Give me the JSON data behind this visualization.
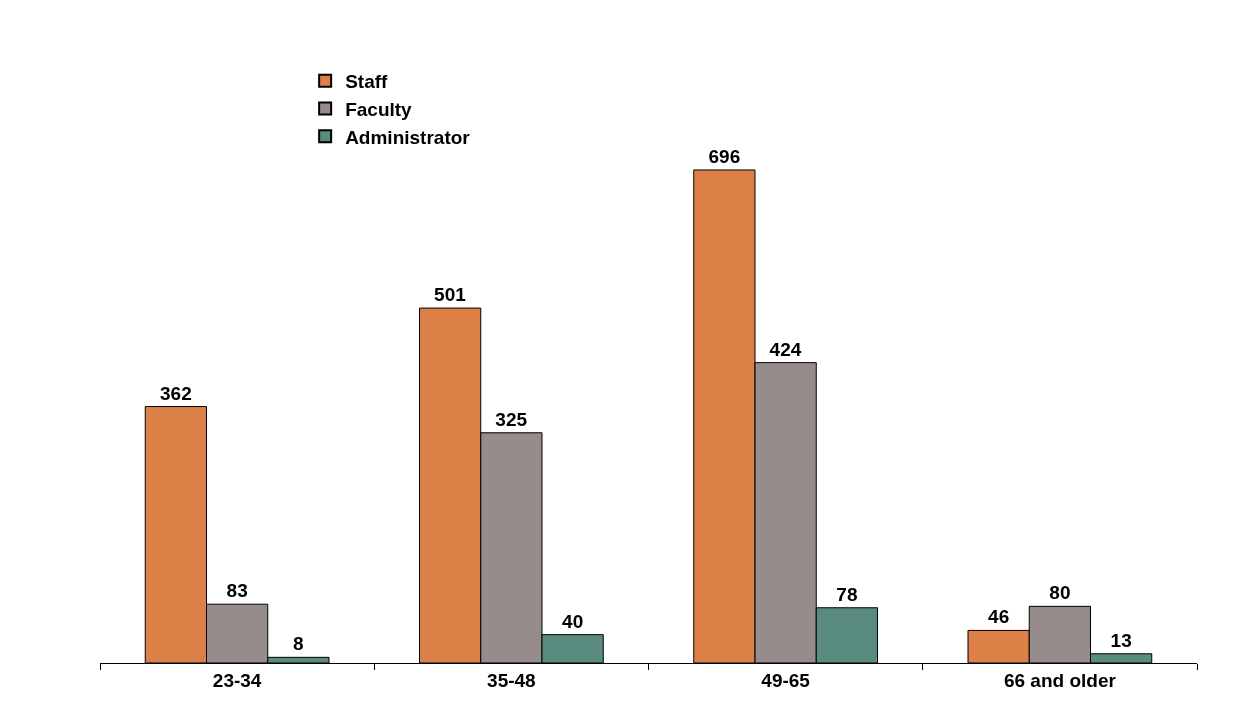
{
  "chart_data": {
    "type": "bar",
    "categories": [
      "23-34",
      "35-48",
      "49-65",
      "66 and older"
    ],
    "series": [
      {
        "name": "Staff",
        "color": "#dd8047",
        "values": [
          362,
          501,
          696,
          46
        ]
      },
      {
        "name": "Faculty",
        "color": "#968c8c",
        "values": [
          83,
          325,
          424,
          80
        ]
      },
      {
        "name": "Administrator",
        "color": "#598b7f",
        "values": [
          8,
          40,
          78,
          13
        ]
      }
    ],
    "data_labels": true,
    "legend": "top left"
  }
}
